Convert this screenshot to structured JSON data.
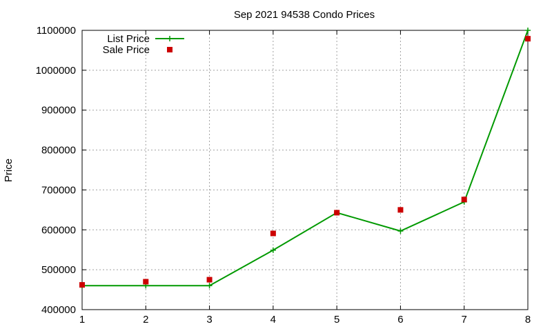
{
  "chart_data": {
    "type": "line",
    "title": "Sep 2021 94538 Condo Prices",
    "xlabel": "",
    "ylabel": "Price",
    "x": [
      1,
      2,
      3,
      4,
      5,
      6,
      7,
      8
    ],
    "xlim": [
      1,
      8
    ],
    "ylim": [
      400000,
      1100000
    ],
    "xticks": [
      "1",
      "2",
      "3",
      "4",
      "5",
      "6",
      "7",
      "8"
    ],
    "yticks": [
      "400000",
      "500000",
      "600000",
      "700000",
      "800000",
      "900000",
      "1000000",
      "1100000"
    ],
    "grid": true,
    "legend_position": "top-left",
    "series": [
      {
        "name": "List Price",
        "style": "line+cross",
        "color": "#009900",
        "values": [
          460000,
          460000,
          460000,
          549000,
          643000,
          597000,
          670000,
          1100000
        ]
      },
      {
        "name": "Sale Price",
        "style": "square",
        "color": "#cc0000",
        "values": [
          462000,
          470000,
          475000,
          591000,
          643000,
          650000,
          676000,
          1079000
        ]
      }
    ]
  }
}
